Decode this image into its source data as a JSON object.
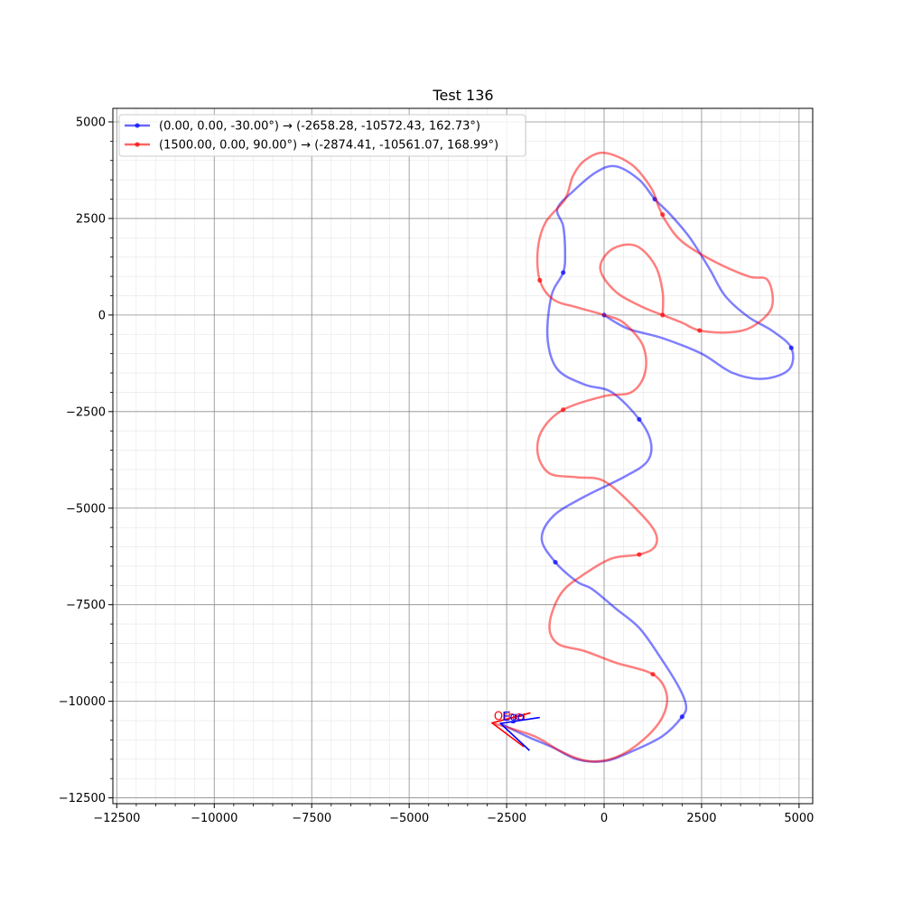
{
  "chart_data": {
    "type": "line",
    "title": "Test 136",
    "xlabel": "",
    "ylabel": "",
    "xlim": [
      -12600,
      5350
    ],
    "ylim": [
      -12650,
      5350
    ],
    "grid": true,
    "legend_position": "upper-left",
    "x_ticks": [
      -12500,
      -10000,
      -7500,
      -5000,
      -2500,
      0,
      2500,
      5000
    ],
    "x_tick_labels": [
      "−12500",
      "−10000",
      "−7500",
      "−5000",
      "−2500",
      "0",
      "2500",
      "5000"
    ],
    "y_ticks": [
      5000,
      2500,
      0,
      -2500,
      -5000,
      -7500,
      -10000,
      -12500
    ],
    "y_tick_labels": [
      "5000",
      "2500",
      "0",
      "−2500",
      "−5000",
      "−7500",
      "−10000",
      "−12500"
    ],
    "series": [
      {
        "name": "(0.00, 0.00, -30.00°) → (-2658.28, -10572.43, 162.73°)",
        "color": "#0000ff",
        "points": [
          [
            0,
            0
          ],
          [
            600,
            -350
          ],
          [
            1500,
            -600
          ],
          [
            2500,
            -1000
          ],
          [
            3300,
            -1500
          ],
          [
            4100,
            -1650
          ],
          [
            4750,
            -1400
          ],
          [
            4800,
            -850
          ],
          [
            4300,
            -400
          ],
          [
            3700,
            -50
          ],
          [
            3100,
            500
          ],
          [
            2700,
            1200
          ],
          [
            2200,
            2000
          ],
          [
            1700,
            2600
          ],
          [
            1300,
            3000
          ],
          [
            900,
            3500
          ],
          [
            300,
            3850
          ],
          [
            -200,
            3700
          ],
          [
            -800,
            3200
          ],
          [
            -1200,
            2750
          ],
          [
            -1050,
            2300
          ],
          [
            -1000,
            1600
          ],
          [
            -1050,
            1100
          ],
          [
            -1350,
            500
          ],
          [
            -1450,
            -600
          ],
          [
            -1200,
            -1400
          ],
          [
            -500,
            -1800
          ],
          [
            200,
            -2000
          ],
          [
            900,
            -2700
          ],
          [
            1200,
            -3300
          ],
          [
            1100,
            -3800
          ],
          [
            500,
            -4200
          ],
          [
            -500,
            -4700
          ],
          [
            -1300,
            -5200
          ],
          [
            -1600,
            -5800
          ],
          [
            -1250,
            -6400
          ],
          [
            -700,
            -6900
          ],
          [
            -300,
            -7100
          ],
          [
            300,
            -7600
          ],
          [
            900,
            -8100
          ],
          [
            1400,
            -8800
          ],
          [
            1900,
            -9600
          ],
          [
            2100,
            -10100
          ],
          [
            2000,
            -10400
          ],
          [
            1500,
            -10900
          ],
          [
            700,
            -11300
          ],
          [
            0,
            -11550
          ],
          [
            -700,
            -11500
          ],
          [
            -1300,
            -11200
          ],
          [
            -2000,
            -10900
          ],
          [
            -2658,
            -10572
          ]
        ],
        "markers": [
          [
            0,
            0
          ],
          [
            4800,
            -850
          ],
          [
            -1050,
            1100
          ],
          [
            1300,
            3000
          ],
          [
            900,
            -2700
          ],
          [
            -1250,
            -6400
          ],
          [
            2000,
            -10400
          ]
        ]
      },
      {
        "name": "(1500.00, 0.00, 90.00°) → (-2874.41, -10561.07, 168.99°)",
        "color": "#ff0000",
        "points": [
          [
            1500,
            0
          ],
          [
            1500,
            600
          ],
          [
            1300,
            1300
          ],
          [
            800,
            1800
          ],
          [
            200,
            1700
          ],
          [
            -100,
            1200
          ],
          [
            300,
            600
          ],
          [
            1000,
            200
          ],
          [
            1500,
            0
          ],
          [
            2000,
            -200
          ],
          [
            2450,
            -400
          ],
          [
            3200,
            -450
          ],
          [
            3800,
            -300
          ],
          [
            4300,
            200
          ],
          [
            4200,
            900
          ],
          [
            3700,
            1000
          ],
          [
            2800,
            1400
          ],
          [
            2000,
            1900
          ],
          [
            1600,
            2400
          ],
          [
            1400,
            2800
          ],
          [
            1200,
            3300
          ],
          [
            700,
            3900
          ],
          [
            0,
            4200
          ],
          [
            -500,
            4000
          ],
          [
            -800,
            3600
          ],
          [
            -1000,
            3000
          ],
          [
            -1500,
            2400
          ],
          [
            -1700,
            1700
          ],
          [
            -1650,
            900
          ],
          [
            -1300,
            400
          ],
          [
            -700,
            200
          ],
          [
            0,
            0
          ],
          [
            500,
            -200
          ],
          [
            1000,
            -800
          ],
          [
            1050,
            -1500
          ],
          [
            700,
            -2000
          ],
          [
            0,
            -2100
          ],
          [
            -1050,
            -2450
          ],
          [
            -1600,
            -3000
          ],
          [
            -1700,
            -3600
          ],
          [
            -1400,
            -4100
          ],
          [
            -700,
            -4200
          ],
          [
            0,
            -4300
          ],
          [
            800,
            -5000
          ],
          [
            1300,
            -5600
          ],
          [
            1300,
            -6000
          ],
          [
            900,
            -6200
          ],
          [
            200,
            -6300
          ],
          [
            -500,
            -6700
          ],
          [
            -1100,
            -7200
          ],
          [
            -1400,
            -8000
          ],
          [
            -1200,
            -8500
          ],
          [
            -500,
            -8700
          ],
          [
            300,
            -9000
          ],
          [
            1250,
            -9300
          ],
          [
            1600,
            -9800
          ],
          [
            1500,
            -10400
          ],
          [
            1000,
            -11000
          ],
          [
            300,
            -11450
          ],
          [
            -400,
            -11550
          ],
          [
            -1100,
            -11300
          ],
          [
            -1800,
            -10900
          ],
          [
            -2874,
            -10561
          ]
        ],
        "markers": [
          [
            1500,
            0
          ],
          [
            2450,
            -400
          ],
          [
            1500,
            2600
          ],
          [
            -1650,
            900
          ],
          [
            -1050,
            -2450
          ],
          [
            900,
            -6200
          ],
          [
            1250,
            -9300
          ]
        ]
      }
    ],
    "ego_markers": [
      {
        "label": "Other",
        "color": "#ff0000",
        "x": -2874,
        "y": -10561,
        "heading_deg": 168.99
      },
      {
        "label": "Ego",
        "color": "#0000ff",
        "x": -2658,
        "y": -10572,
        "heading_deg": 162.73
      }
    ]
  }
}
